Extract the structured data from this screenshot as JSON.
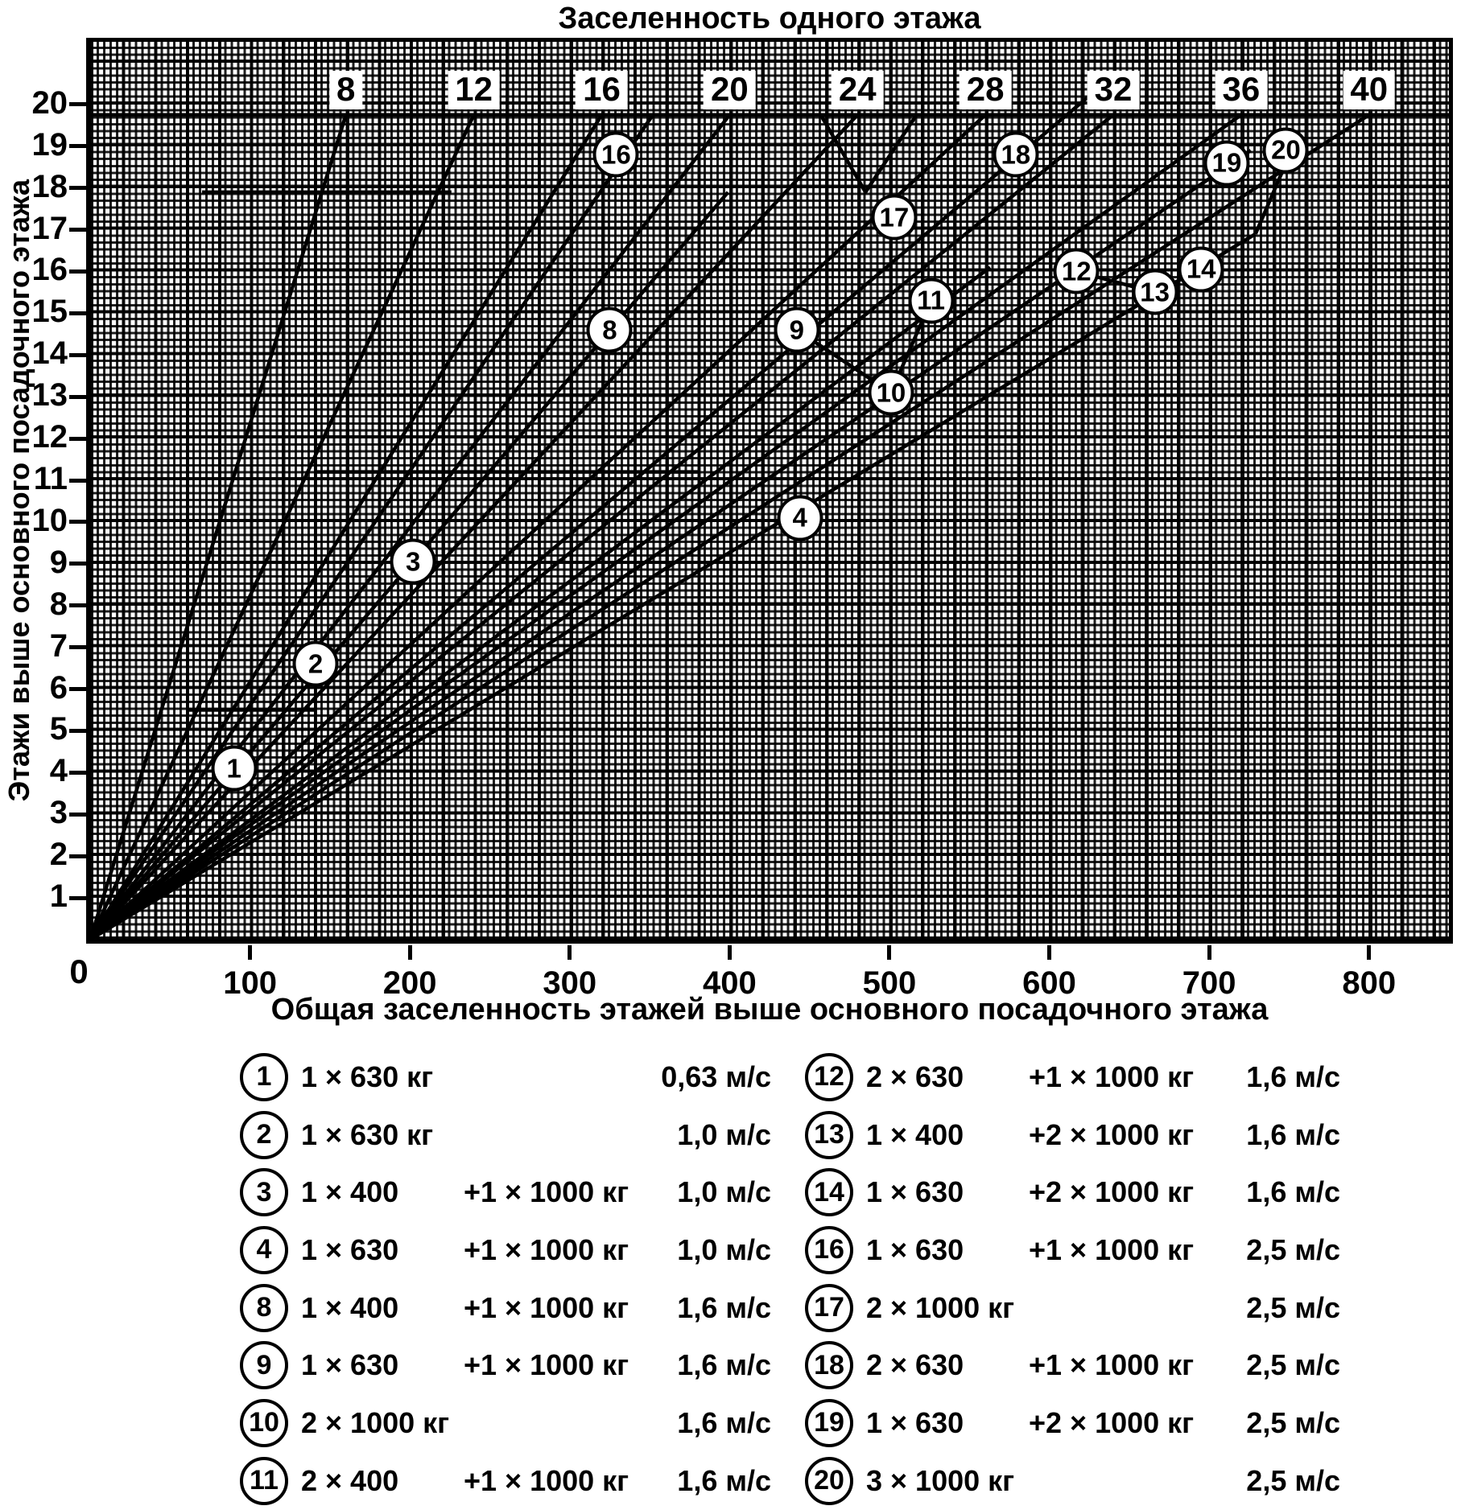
{
  "chart_data": {
    "type": "line",
    "title": "Заселенность одного этажа",
    "xlabel": "Общая заселенность этажей выше основного посадочного этажа",
    "ylabel": "Этажи выше основного посадочного этажа",
    "xlim": [
      0,
      850
    ],
    "ylim": [
      0,
      21.5
    ],
    "grid": "dense graph-paper mesh, black on white",
    "x_ticks": [
      100,
      200,
      300,
      400,
      500,
      600,
      700,
      800
    ],
    "y_ticks": [
      1,
      2,
      3,
      4,
      5,
      6,
      7,
      8,
      9,
      10,
      11,
      12,
      13,
      14,
      15,
      16,
      17,
      18,
      19,
      20
    ],
    "origin_label": "0",
    "fan_lines": {
      "meaning": "occupancy per floor rays from origin",
      "values": [
        8,
        12,
        16,
        20,
        24,
        28,
        32,
        36,
        40
      ],
      "end_floor": 19.75,
      "label_floor": 20.35
    },
    "lines": [
      {
        "name": "limit-line-1-2-3-8",
        "points": [
          [
            0,
            0
          ],
          [
            399,
            17.9
          ]
        ]
      },
      {
        "name": "limit-line-16",
        "points": [
          [
            0,
            0
          ],
          [
            352,
            19.75
          ]
        ]
      },
      {
        "name": "limit-line-9-17-18",
        "points": [
          [
            0,
            0
          ],
          [
            628,
            20.3
          ]
        ]
      },
      {
        "name": "limit-line-11",
        "points": [
          [
            0,
            0
          ],
          [
            563,
            16.1
          ]
        ]
      },
      {
        "name": "limit-line-10-12-19",
        "points": [
          [
            0,
            0
          ],
          [
            726,
            18.9
          ]
        ]
      },
      {
        "name": "limit-line-4-13-14",
        "points": [
          [
            0,
            0
          ],
          [
            729,
            16.9
          ]
        ]
      },
      {
        "name": "top-rule",
        "points": [
          [
            0,
            19.75
          ],
          [
            850,
            19.75
          ]
        ]
      },
      {
        "name": "step-at-18-floors",
        "points": [
          [
            70,
            17.9
          ],
          [
            226,
            17.9
          ]
        ]
      },
      {
        "name": "step-at-11-floors",
        "points": [
          [
            140,
            11.2
          ],
          [
            380,
            11.2
          ]
        ]
      },
      {
        "name": "step-at-5-floors",
        "points": [
          [
            60,
            5.5
          ],
          [
            140,
            5.5
          ]
        ]
      },
      {
        "name": "zigzag-under-24",
        "points": [
          [
            457,
            19.75
          ],
          [
            485,
            17.9
          ],
          [
            517,
            19.75
          ]
        ]
      },
      {
        "name": "connector-12-13-14",
        "points": [
          [
            617,
            16.0
          ],
          [
            666,
            15.5
          ],
          [
            695,
            16.05
          ]
        ]
      },
      {
        "name": "connector-9-10-11",
        "points": [
          [
            442,
            14.6
          ],
          [
            501,
            13.1
          ],
          [
            526,
            15.3
          ]
        ]
      },
      {
        "name": "connector-14-to-20",
        "points": [
          [
            729,
            16.9
          ],
          [
            756,
            19.3
          ]
        ]
      }
    ],
    "markers": [
      {
        "label": "1",
        "x": 90,
        "y": 4.1
      },
      {
        "label": "2",
        "x": 141,
        "y": 6.6
      },
      {
        "label": "3",
        "x": 202,
        "y": 9.05
      },
      {
        "label": "4",
        "x": 444,
        "y": 10.1
      },
      {
        "label": "8",
        "x": 325,
        "y": 14.6
      },
      {
        "label": "9",
        "x": 442,
        "y": 14.6
      },
      {
        "label": "10",
        "x": 501,
        "y": 13.1
      },
      {
        "label": "11",
        "x": 526,
        "y": 15.3
      },
      {
        "label": "12",
        "x": 617,
        "y": 16.0
      },
      {
        "label": "13",
        "x": 666,
        "y": 15.5
      },
      {
        "label": "14",
        "x": 695,
        "y": 16.05
      },
      {
        "label": "16",
        "x": 329,
        "y": 18.8
      },
      {
        "label": "17",
        "x": 503,
        "y": 17.3
      },
      {
        "label": "18",
        "x": 579,
        "y": 18.8
      },
      {
        "label": "19",
        "x": 711,
        "y": 18.6
      },
      {
        "label": "20",
        "x": 748,
        "y": 18.9
      }
    ]
  },
  "legend": {
    "left": [
      {
        "num": "1",
        "cars": "1 × 630 кг",
        "extra": "",
        "speed": "0,63 м/с"
      },
      {
        "num": "2",
        "cars": "1 × 630 кг",
        "extra": "",
        "speed": "1,0 м/с"
      },
      {
        "num": "3",
        "cars": "1 × 400",
        "extra": "+1 × 1000 кг",
        "speed": "1,0 м/с"
      },
      {
        "num": "4",
        "cars": "1 × 630",
        "extra": "+1 × 1000 кг",
        "speed": "1,0 м/с"
      },
      {
        "num": "8",
        "cars": "1 × 400",
        "extra": "+1 × 1000 кг",
        "speed": "1,6 м/с"
      },
      {
        "num": "9",
        "cars": "1 × 630",
        "extra": "+1 × 1000 кг",
        "speed": "1,6 м/с"
      },
      {
        "num": "10",
        "cars": "2 × 1000 кг",
        "extra": "",
        "speed": "1,6 м/с"
      },
      {
        "num": "11",
        "cars": "2 × 400",
        "extra": "+1 × 1000 кг",
        "speed": "1,6 м/с"
      }
    ],
    "right": [
      {
        "num": "12",
        "cars": "2 × 630",
        "extra": "+1 × 1000 кг",
        "speed": "1,6 м/с"
      },
      {
        "num": "13",
        "cars": "1 × 400",
        "extra": "+2 × 1000 кг",
        "speed": "1,6 м/с"
      },
      {
        "num": "14",
        "cars": "1 × 630",
        "extra": "+2 × 1000 кг",
        "speed": "1,6 м/с"
      },
      {
        "num": "16",
        "cars": "1 × 630",
        "extra": "+1 × 1000 кг",
        "speed": "2,5 м/с"
      },
      {
        "num": "17",
        "cars": "2 × 1000 кг",
        "extra": "",
        "speed": "2,5 м/с"
      },
      {
        "num": "18",
        "cars": "2 × 630",
        "extra": "+1 × 1000 кг",
        "speed": "2,5 м/с"
      },
      {
        "num": "19",
        "cars": "1 × 630",
        "extra": "+2 × 1000 кг",
        "speed": "2,5 м/с"
      },
      {
        "num": "20",
        "cars": "3 × 1000 кг",
        "extra": "",
        "speed": "2,5 м/с"
      }
    ]
  }
}
